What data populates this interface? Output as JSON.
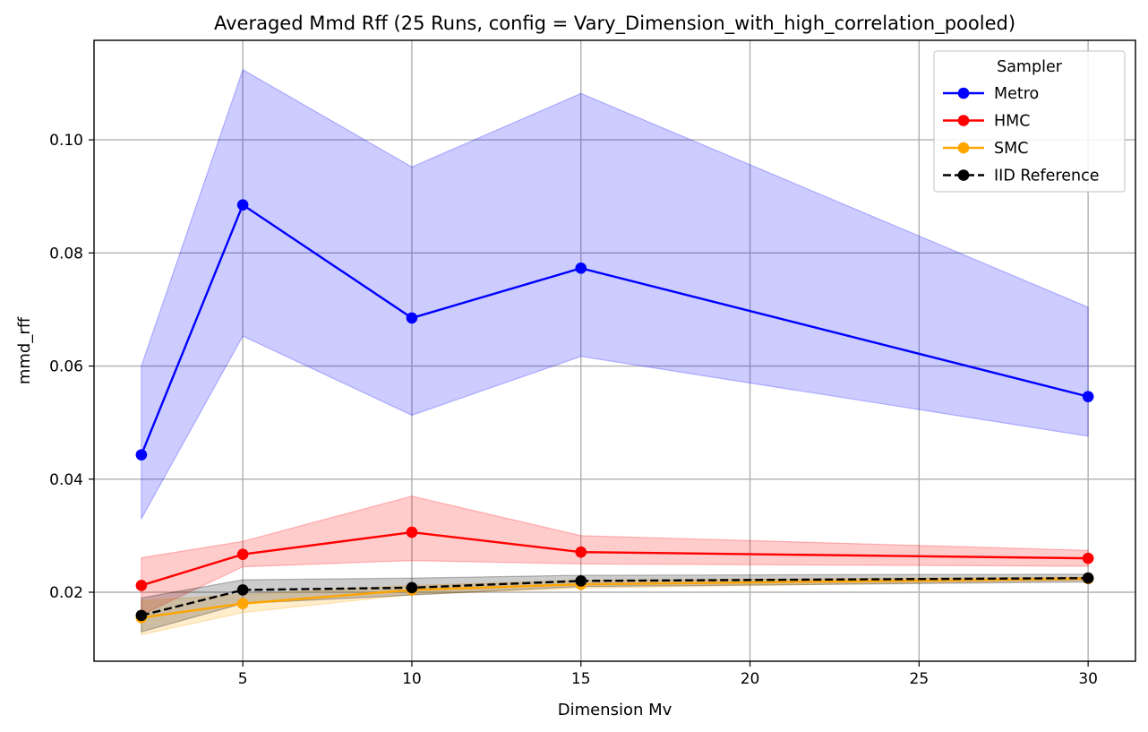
{
  "chart_data": {
    "type": "line",
    "title": "Averaged Mmd Rff (25 Runs, config = Vary_Dimension_with_high_correlation_pooled)",
    "xlabel": "Dimension Mv",
    "ylabel": "mmd_rff",
    "xlim": [
      0.6,
      31.4
    ],
    "ylim": [
      0.0078,
      0.1176
    ],
    "xticks": [
      5,
      10,
      15,
      20,
      25,
      30
    ],
    "xtick_labels": [
      "5",
      "10",
      "15",
      "20",
      "25",
      "30"
    ],
    "yticks": [
      0.02,
      0.04,
      0.06,
      0.08,
      0.1
    ],
    "ytick_labels": [
      "0.02",
      "0.04",
      "0.06",
      "0.08",
      "0.10"
    ],
    "grid": true,
    "legend": {
      "title": "Sampler",
      "position": "top-right"
    },
    "x": [
      2,
      5,
      10,
      15,
      30
    ],
    "series": [
      {
        "name": "Metro",
        "color": "#0000ff",
        "style": "solid",
        "values": [
          0.0443,
          0.0885,
          0.0685,
          0.0773,
          0.0546
        ],
        "lower": [
          0.033,
          0.0653,
          0.0513,
          0.0617,
          0.0476
        ],
        "upper": [
          0.06,
          0.1124,
          0.0952,
          0.1082,
          0.0704
        ]
      },
      {
        "name": "HMC",
        "color": "#ff0000",
        "style": "solid",
        "values": [
          0.0212,
          0.0267,
          0.0306,
          0.0271,
          0.026
        ],
        "lower": [
          0.016,
          0.0245,
          0.0256,
          0.025,
          0.0246
        ],
        "upper": [
          0.0261,
          0.029,
          0.037,
          0.03,
          0.0274
        ]
      },
      {
        "name": "SMC",
        "color": "#ffa500",
        "style": "solid",
        "values": [
          0.0155,
          0.018,
          0.0204,
          0.0214,
          0.0224
        ],
        "lower": [
          0.0125,
          0.0164,
          0.0196,
          0.0207,
          0.0221
        ],
        "upper": [
          0.0185,
          0.0196,
          0.0212,
          0.0221,
          0.0227
        ]
      },
      {
        "name": "IID Reference",
        "color": "#000000",
        "style": "dashed",
        "values": [
          0.0159,
          0.0204,
          0.0208,
          0.022,
          0.0225
        ],
        "lower": [
          0.013,
          0.018,
          0.0195,
          0.021,
          0.0218
        ],
        "upper": [
          0.019,
          0.0222,
          0.0225,
          0.023,
          0.0232
        ]
      }
    ]
  }
}
